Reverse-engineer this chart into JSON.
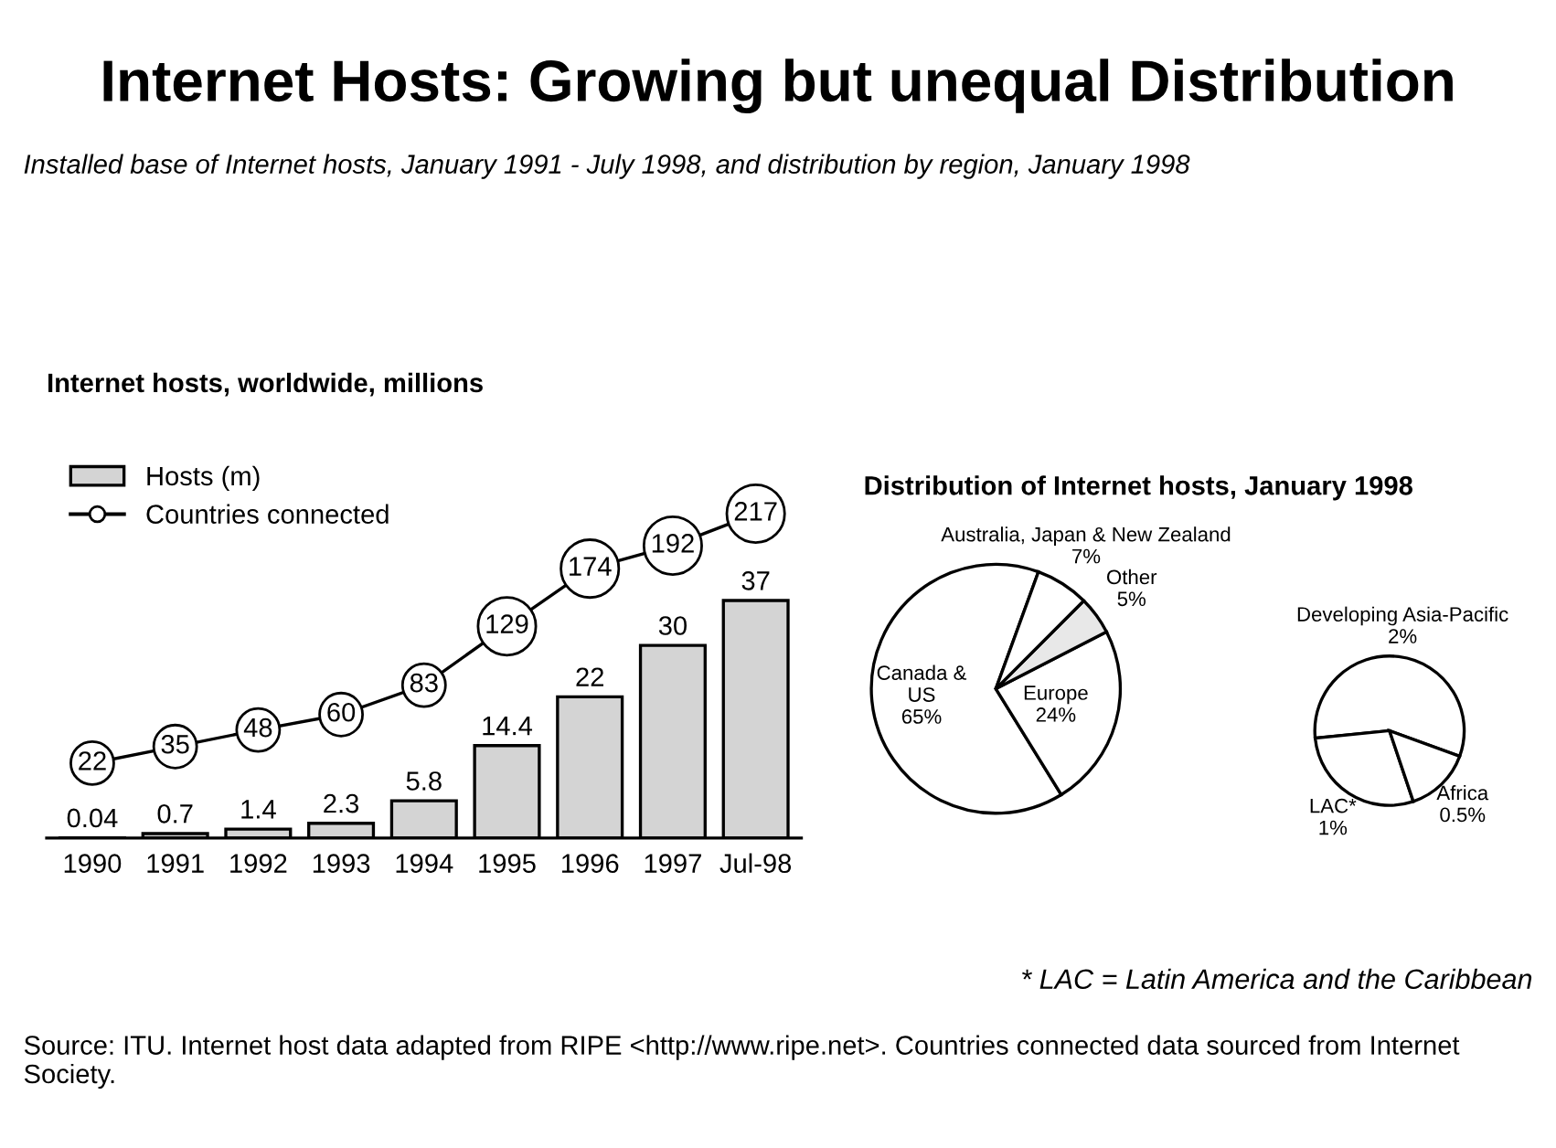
{
  "chart_data": [
    {
      "type": "other",
      "title": "Internet Hosts: Growing but unequal Distribution",
      "subtitle": "Installed base of Internet hosts, January 1991 - July 1998, and distribution by region, January 1998",
      "annotations": [
        "* LAC = Latin America and the Caribbean",
        "Source: ITU. Internet host data adapted from RIPE <http://www.ripe.net>. Countries connected data sourced from Internet Society."
      ]
    },
    {
      "type": "bar",
      "title": "Internet hosts, worldwide, millions",
      "categories": [
        "1990",
        "1991",
        "1992",
        "1993",
        "1994",
        "1995",
        "1996",
        "1997",
        "Jul-98"
      ],
      "series": [
        {
          "name": "Hosts (m)",
          "type": "bar",
          "color": "#d4d4d4",
          "values": [
            0.04,
            0.7,
            1.4,
            2.3,
            5.8,
            14.4,
            22,
            30,
            37
          ]
        },
        {
          "name": "Countries connected",
          "type": "line",
          "axis": "y2",
          "color": "#000000",
          "values": [
            22,
            35,
            48,
            60,
            83,
            129,
            174,
            192,
            217
          ]
        }
      ],
      "data_labels": true,
      "marker": "circle",
      "legend": "top left"
    },
    {
      "type": "pie",
      "title": "Distribution of Internet hosts, January 1998",
      "categories": [
        "Canada &\nUS",
        "Europe",
        "Other",
        "Australia, Japan & New Zealand"
      ],
      "values": [
        65,
        24,
        5,
        7
      ],
      "colors": [
        "#ffffff",
        "#ffffff",
        "#e8e8e8",
        "#ffffff"
      ],
      "value_labels": [
        "65%",
        "24%",
        "5%",
        "7%"
      ]
    },
    {
      "type": "pie",
      "categories": [
        "Developing Asia-Pacific",
        "LAC*",
        "Africa"
      ],
      "values": [
        2,
        1,
        0.5
      ],
      "colors": [
        "#ffffff",
        "#ffffff",
        "#ffffff"
      ],
      "value_labels": [
        "2%",
        "1%",
        "0.5%"
      ]
    }
  ]
}
